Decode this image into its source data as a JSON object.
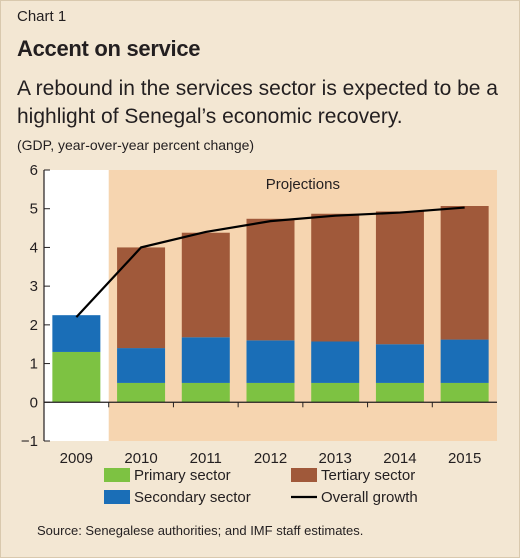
{
  "header": {
    "chart_number": "Chart 1",
    "title": "Accent on service",
    "subtitle": "A rebound in the services sector is expected to be a highlight of Senegal’s economic recovery.",
    "units": "(GDP, year-over-year percent change)"
  },
  "footer": {
    "source": "Source: Senegalese authorities; and IMF staff estimates."
  },
  "chart_data": {
    "type": "bar",
    "stacked": true,
    "categories": [
      "2009",
      "2010",
      "2011",
      "2012",
      "2013",
      "2014",
      "2015"
    ],
    "series": [
      {
        "name": "Primary sector",
        "color": "#7dc242",
        "values": [
          1.3,
          0.5,
          0.5,
          0.5,
          0.5,
          0.5,
          0.5
        ]
      },
      {
        "name": "Secondary sector",
        "color": "#1a6eb7",
        "values": [
          0.95,
          0.9,
          1.18,
          1.1,
          1.07,
          1.0,
          1.12
        ]
      },
      {
        "name": "Tertiary sector",
        "color": "#a0593a",
        "values": [
          0,
          2.6,
          2.7,
          3.14,
          3.3,
          3.43,
          3.45
        ]
      }
    ],
    "line": {
      "name": "Overall growth",
      "color": "#000000",
      "values": [
        2.2,
        4.0,
        4.4,
        4.68,
        4.82,
        4.9,
        5.03
      ]
    },
    "ylim": [
      -1,
      6
    ],
    "yticks": [
      "−1",
      "0",
      "1",
      "2",
      "3",
      "4",
      "5",
      "6"
    ],
    "ytick_values": [
      -1,
      0,
      1,
      2,
      3,
      4,
      5,
      6
    ],
    "projection": {
      "label": "Projections",
      "start_category": "2010",
      "color": "#f6d5b0"
    },
    "legend_position": "bottom"
  }
}
